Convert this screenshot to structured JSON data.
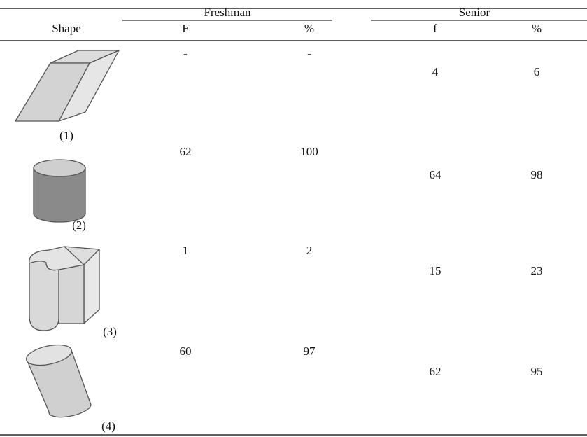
{
  "table": {
    "group_headers": [
      "Freshman",
      "Senior"
    ],
    "columns": [
      "Shape",
      "F",
      "%",
      "f",
      "%"
    ],
    "rows": [
      {
        "label": "(1)",
        "cells": [
          "-",
          "-",
          4,
          6
        ]
      },
      {
        "label": "(2)",
        "cells": [
          62,
          100,
          64,
          98
        ]
      },
      {
        "label": "(3)",
        "cells": [
          1,
          2,
          15,
          23
        ]
      },
      {
        "label": "(4)",
        "cells": [
          60,
          97,
          62,
          95
        ]
      }
    ]
  }
}
